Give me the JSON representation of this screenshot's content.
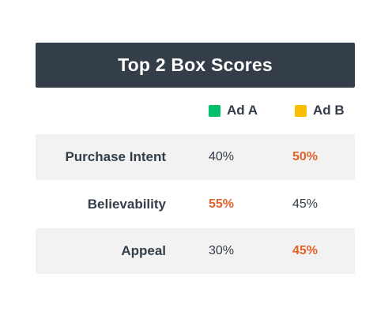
{
  "colors": {
    "title_bg": "#333e48",
    "series_a": "#00bf6f",
    "series_b": "#f9be00",
    "highlight": "#e0622a",
    "row_shade": "#f2f2f2"
  },
  "chart_data": {
    "type": "table",
    "title": "Top 2 Box Scores",
    "legend": [
      "Ad A",
      "Ad B"
    ],
    "rows": [
      {
        "label": "Purchase Intent",
        "ad_a": "40%",
        "ad_b": "50%",
        "winner": "ad_b"
      },
      {
        "label": "Believability",
        "ad_a": "55%",
        "ad_b": "45%",
        "winner": "ad_a"
      },
      {
        "label": "Appeal",
        "ad_a": "30%",
        "ad_b": "45%",
        "winner": "ad_b"
      }
    ]
  }
}
